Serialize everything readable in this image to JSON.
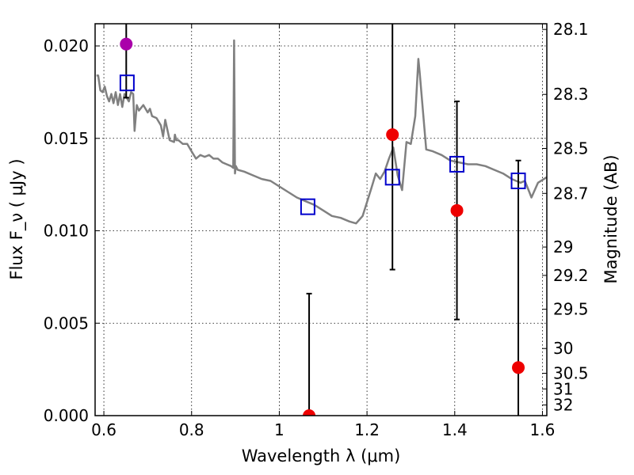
{
  "chart_data": {
    "type": "scatter",
    "title": "",
    "xlabel": "Wavelength  λ (μm)",
    "ylabel": "Flux  F_ν  ( μJy )",
    "ylabel_right": "Magnitude (AB)",
    "xlim": [
      0.58,
      1.61
    ],
    "ylim": [
      0.0,
      0.0212
    ],
    "grid": true,
    "x_ticks": [
      {
        "value": 0.6,
        "label": "0.6"
      },
      {
        "value": 0.8,
        "label": "0.8"
      },
      {
        "value": 1.0,
        "label": "1"
      },
      {
        "value": 1.2,
        "label": "1.2"
      },
      {
        "value": 1.4,
        "label": "1.4"
      },
      {
        "value": 1.6,
        "label": "1.6"
      }
    ],
    "y_ticks": [
      {
        "value": 0.0,
        "label": "0.000"
      },
      {
        "value": 0.005,
        "label": "0.005"
      },
      {
        "value": 0.01,
        "label": "0.010"
      },
      {
        "value": 0.015,
        "label": "0.015"
      },
      {
        "value": 0.02,
        "label": "0.020"
      }
    ],
    "right_ticks": [
      {
        "label": "28.1",
        "mag": 28.1
      },
      {
        "label": "28.3",
        "mag": 28.3
      },
      {
        "label": "28.5",
        "mag": 28.5
      },
      {
        "label": "28.7",
        "mag": 28.7
      },
      {
        "label": "29",
        "mag": 29.0
      },
      {
        "label": "29.2",
        "mag": 29.2
      },
      {
        "label": "29.5",
        "mag": 29.5
      },
      {
        "label": "30",
        "mag": 30.0
      },
      {
        "label": "30.5",
        "mag": 30.5
      },
      {
        "label": "31",
        "mag": 31.0
      },
      {
        "label": "32",
        "mag": 32.0
      }
    ],
    "model_spectrum": {
      "color": "#808080",
      "x": [
        0.583,
        0.587,
        0.592,
        0.597,
        0.602,
        0.607,
        0.612,
        0.617,
        0.622,
        0.627,
        0.632,
        0.637,
        0.642,
        0.647,
        0.652,
        0.657,
        0.662,
        0.667,
        0.67,
        0.675,
        0.68,
        0.69,
        0.7,
        0.705,
        0.71,
        0.72,
        0.73,
        0.735,
        0.74,
        0.75,
        0.76,
        0.762,
        0.765,
        0.77,
        0.78,
        0.79,
        0.8,
        0.81,
        0.82,
        0.83,
        0.84,
        0.85,
        0.86,
        0.87,
        0.88,
        0.89,
        0.895,
        0.897,
        0.899,
        0.901,
        0.905,
        0.92,
        0.94,
        0.96,
        0.98,
        1.0,
        1.02,
        1.04,
        1.06,
        1.08,
        1.1,
        1.12,
        1.14,
        1.16,
        1.175,
        1.19,
        1.21,
        1.22,
        1.23,
        1.24,
        1.25,
        1.26,
        1.27,
        1.28,
        1.29,
        1.3,
        1.31,
        1.317,
        1.32,
        1.335,
        1.35,
        1.37,
        1.39,
        1.41,
        1.43,
        1.45,
        1.47,
        1.49,
        1.51,
        1.53,
        1.55,
        1.56,
        1.57,
        1.575,
        1.59,
        1.61
      ],
      "y": [
        0.0184,
        0.0184,
        0.0176,
        0.0175,
        0.0178,
        0.0173,
        0.017,
        0.0174,
        0.0169,
        0.0175,
        0.0168,
        0.0174,
        0.0167,
        0.0174,
        0.0172,
        0.017,
        0.0175,
        0.0174,
        0.0154,
        0.0168,
        0.0165,
        0.0168,
        0.0164,
        0.0166,
        0.0162,
        0.0161,
        0.0157,
        0.0151,
        0.016,
        0.0149,
        0.0148,
        0.0152,
        0.0149,
        0.0149,
        0.0147,
        0.0147,
        0.0143,
        0.0139,
        0.0141,
        0.014,
        0.0141,
        0.0139,
        0.0139,
        0.0137,
        0.0136,
        0.0135,
        0.0134,
        0.0203,
        0.0131,
        0.0135,
        0.0133,
        0.0132,
        0.013,
        0.0128,
        0.0127,
        0.0124,
        0.0121,
        0.0118,
        0.0116,
        0.0114,
        0.0111,
        0.0108,
        0.0107,
        0.0105,
        0.0104,
        0.0108,
        0.0123,
        0.0131,
        0.0128,
        0.0132,
        0.0139,
        0.0145,
        0.013,
        0.0122,
        0.0148,
        0.0147,
        0.0162,
        0.0193,
        0.0186,
        0.0144,
        0.0143,
        0.0141,
        0.0138,
        0.0137,
        0.0136,
        0.0136,
        0.0135,
        0.0133,
        0.0131,
        0.0128,
        0.0126,
        0.0127,
        0.0121,
        0.0118,
        0.0126,
        0.0129
      ]
    },
    "model_points": {
      "color": "#0000cc",
      "x": [
        0.653,
        1.065,
        1.258,
        1.405,
        1.545
      ],
      "y": [
        0.018,
        0.0113,
        0.0129,
        0.0136,
        0.0127
      ]
    },
    "observed_points": [
      {
        "x": 0.651,
        "y": 0.0201,
        "err_low": 0.0029,
        "err_high": 0.004,
        "color": "#aa00aa"
      },
      {
        "x": 1.068,
        "y": 0.0,
        "err_low": 0.0,
        "err_high": 0.0066,
        "color": "#ee0000"
      },
      {
        "x": 1.258,
        "y": 0.0152,
        "err_low": 0.0073,
        "err_high": 0.0075,
        "color": "#ee0000"
      },
      {
        "x": 1.405,
        "y": 0.0111,
        "err_low": 0.0059,
        "err_high": 0.0059,
        "color": "#ee0000"
      },
      {
        "x": 1.545,
        "y": 0.0026,
        "err_low": 0.003,
        "err_high": 0.0112,
        "color": "#ee0000"
      }
    ]
  }
}
